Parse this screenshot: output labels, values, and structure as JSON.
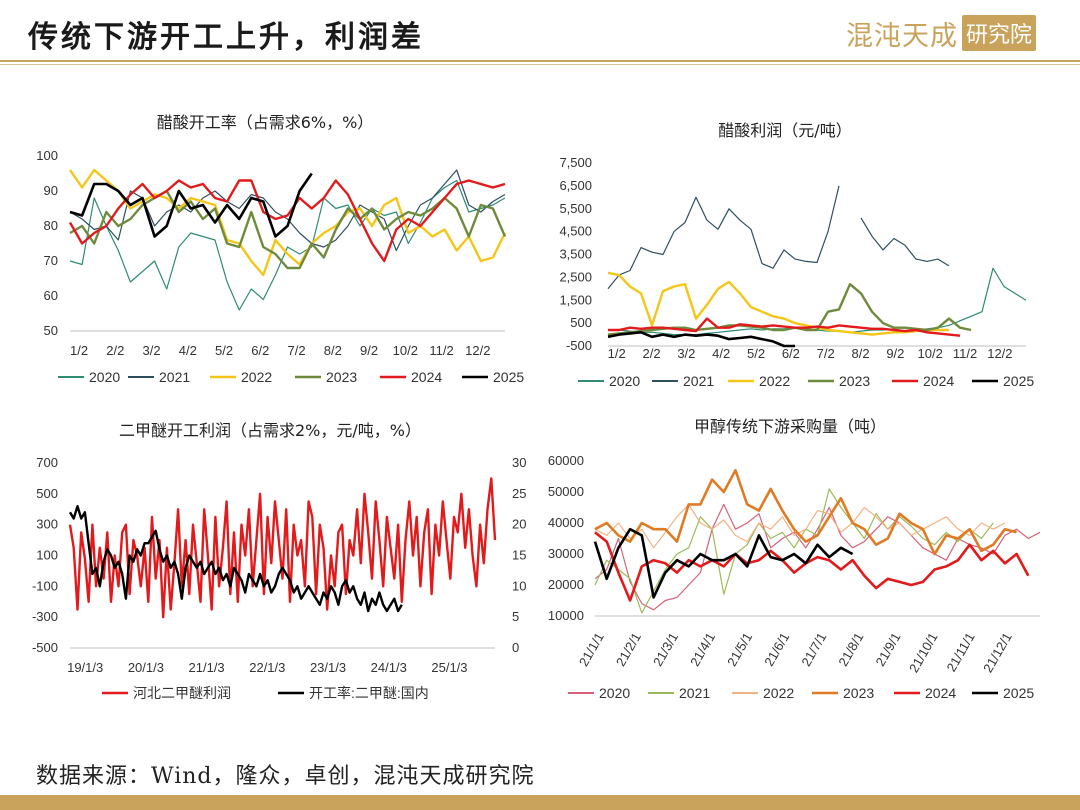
{
  "header": {
    "title": "传统下游开工上升，利润差"
  },
  "logo": {
    "text": "混沌天成",
    "box": "研究院"
  },
  "footer": {
    "source": "数据来源：Wind，隆众，卓创，混沌天成研究院"
  },
  "colors": {
    "gold": "#c9a35c"
  },
  "chart_data": [
    {
      "type": "line",
      "title": "醋酸开工率（占需求6%，%）",
      "ylim": [
        50,
        100
      ],
      "yticks": [
        "50",
        "60",
        "70",
        "80",
        "90",
        "100"
      ],
      "xlabels": [
        "1/2",
        "2/2",
        "3/2",
        "4/2",
        "5/2",
        "6/2",
        "7/2",
        "8/2",
        "9/2",
        "10/2",
        "11/2",
        "12/2"
      ],
      "grid": false,
      "legend": "bottom",
      "series": [
        {
          "name": "2020",
          "color": "#2e8b74",
          "width": 1.2,
          "values": [
            70,
            69,
            88,
            80,
            73,
            64,
            67,
            70,
            62,
            74,
            78,
            77,
            76,
            64,
            56,
            62,
            59,
            66,
            74,
            72,
            74,
            88,
            85,
            86,
            80,
            85,
            83,
            84,
            75,
            81,
            88,
            91,
            93,
            84,
            85,
            86,
            88
          ]
        },
        {
          "name": "2021",
          "color": "#2f4f5f",
          "width": 1.2,
          "values": [
            84,
            82,
            79,
            80,
            76,
            90,
            88,
            80,
            84,
            86,
            84,
            88,
            90,
            87,
            85,
            89,
            88,
            84,
            82,
            78,
            75,
            74,
            76,
            80,
            86,
            84,
            82,
            73,
            80,
            86,
            88,
            92,
            96,
            86,
            84,
            87,
            89
          ]
        },
        {
          "name": "2022",
          "color": "#f5c518",
          "width": 2.4,
          "values": [
            96,
            91,
            96,
            93,
            90,
            85,
            87,
            89,
            88,
            85,
            88,
            87,
            86,
            76,
            75,
            70,
            66,
            76,
            72,
            69,
            75,
            78,
            80,
            84,
            85,
            80,
            86,
            88,
            78,
            80,
            77,
            79,
            73,
            77,
            70,
            71,
            78
          ]
        },
        {
          "name": "2023",
          "color": "#6e8b3d",
          "width": 2.4,
          "values": [
            78,
            80,
            75,
            84,
            80,
            82,
            86,
            88,
            90,
            84,
            87,
            82,
            85,
            75,
            74,
            84,
            74,
            72,
            68,
            68,
            75,
            71,
            79,
            85,
            82,
            85,
            79,
            82,
            84,
            83,
            85,
            88,
            85,
            77,
            86,
            85,
            77
          ]
        },
        {
          "name": "2024",
          "color": "#e31a1c",
          "width": 2.4,
          "values": [
            81,
            75,
            78,
            80,
            85,
            89,
            92,
            88,
            90,
            93,
            91,
            92,
            88,
            87,
            93,
            93,
            84,
            82,
            83,
            88,
            85,
            88,
            93,
            89,
            82,
            75,
            70,
            79,
            82,
            80,
            84,
            88,
            92,
            93,
            92,
            91,
            92
          ]
        },
        {
          "name": "2025",
          "color": "#000000",
          "width": 2.6,
          "values": [
            84,
            83,
            92,
            92,
            90,
            86,
            88,
            77,
            80,
            90,
            85,
            86,
            81,
            86,
            82,
            88,
            87,
            77,
            80,
            90,
            95
          ]
        }
      ]
    },
    {
      "type": "line",
      "title": "醋酸利润（元/吨）",
      "ylim": [
        -500,
        7500
      ],
      "yticks": [
        "-500",
        "500",
        "1,500",
        "2,500",
        "3,500",
        "4,500",
        "5,500",
        "6,500",
        "7,500"
      ],
      "xlabels": [
        "1/2",
        "2/2",
        "3/2",
        "4/2",
        "5/2",
        "6/2",
        "7/2",
        "8/2",
        "9/2",
        "10/2",
        "11/2",
        "12/2"
      ],
      "grid": false,
      "legend": "bottom",
      "series": [
        {
          "name": "2020",
          "color": "#2e8b74",
          "width": 1.2,
          "values": [
            200,
            200,
            150,
            100,
            100,
            50,
            0,
            0,
            0,
            50,
            100,
            150,
            200,
            250,
            200,
            250,
            250,
            300,
            250,
            200,
            150,
            150,
            100,
            150,
            200,
            200,
            250,
            150,
            200,
            250,
            300,
            400,
            600,
            800,
            1000,
            2900,
            2100,
            1800,
            1500
          ]
        },
        {
          "name": "2021",
          "color": "#2f4f5f",
          "width": 1.2,
          "values": [
            2000,
            2600,
            2800,
            3800,
            3600,
            3500,
            4500,
            4900,
            6000,
            5000,
            4600,
            5500,
            5000,
            4600,
            3100,
            2900,
            3700,
            3300,
            3200,
            3150,
            4500,
            6500,
            null,
            5100,
            4300,
            3700,
            4200,
            3900,
            3300,
            3200,
            3300,
            3000
          ]
        },
        {
          "name": "2022",
          "color": "#f5c518",
          "width": 2.4,
          "values": [
            2700,
            2600,
            2100,
            1800,
            400,
            1900,
            2100,
            2200,
            700,
            1300,
            2000,
            2300,
            1800,
            1200,
            1000,
            800,
            700,
            500,
            400,
            300,
            200,
            150,
            100,
            50,
            0,
            50,
            100,
            100,
            150,
            200,
            200,
            200
          ]
        },
        {
          "name": "2023",
          "color": "#6e8b3d",
          "width": 2.4,
          "values": [
            0,
            50,
            100,
            150,
            200,
            250,
            300,
            300,
            200,
            250,
            300,
            400,
            400,
            350,
            300,
            200,
            200,
            300,
            200,
            200,
            1000,
            1100,
            2200,
            1800,
            1000,
            500,
            300,
            300,
            250,
            200,
            300,
            700,
            300,
            200
          ]
        },
        {
          "name": "2024",
          "color": "#e31a1c",
          "width": 2.4,
          "values": [
            200,
            200,
            300,
            250,
            300,
            300,
            250,
            200,
            150,
            700,
            300,
            300,
            450,
            400,
            350,
            400,
            350,
            300,
            300,
            350,
            300,
            400,
            350,
            300,
            250,
            250,
            200,
            150,
            200,
            100,
            50,
            0,
            -50
          ]
        },
        {
          "name": "2025",
          "color": "#000000",
          "width": 2.6,
          "values": [
            -100,
            0,
            50,
            100,
            -100,
            0,
            -100,
            0,
            -50,
            0,
            -50,
            -200,
            -150,
            -100,
            -200,
            -300,
            -500,
            -500
          ]
        }
      ]
    },
    {
      "type": "line",
      "title": "二甲醚开工利润（占需求2%，元/吨，%）",
      "ylim": [
        -500,
        700
      ],
      "yticks": [
        "-500",
        "-300",
        "-100",
        "100",
        "300",
        "500",
        "700"
      ],
      "y2lim": [
        0,
        30
      ],
      "y2ticks": [
        "0",
        "5",
        "10",
        "15",
        "20",
        "25",
        "30"
      ],
      "xlabels": [
        "19/1/3",
        "20/1/3",
        "21/1/3",
        "22/1/3",
        "23/1/3",
        "24/1/3",
        "25/1/3"
      ],
      "grid": false,
      "legend": "bottom",
      "series": [
        {
          "name": "河北二甲醚利润",
          "color": "#e31a1c",
          "width": 2.4,
          "axis": "left",
          "values": [
            300,
            150,
            -250,
            250,
            80,
            -200,
            300,
            -100,
            150,
            -50,
            250,
            -200,
            100,
            -100,
            250,
            300,
            -150,
            200,
            100,
            -100,
            150,
            -200,
            350,
            -50,
            200,
            -300,
            150,
            -250,
            50,
            400,
            -100,
            200,
            -150,
            300,
            50,
            -200,
            400,
            100,
            -250,
            350,
            -100,
            150,
            450,
            -150,
            250,
            -200,
            300,
            100,
            400,
            -100,
            200,
            500,
            -150,
            350,
            50,
            450,
            200,
            -50,
            400,
            -200,
            300,
            100,
            200,
            -100,
            450,
            350,
            -150,
            300,
            150,
            -250,
            100,
            -100,
            250,
            300,
            -150,
            200,
            100,
            400,
            50,
            500,
            250,
            -50,
            450,
            200,
            -100,
            350,
            150,
            -50,
            300,
            -200,
            200,
            450,
            100,
            350,
            -100,
            250,
            400,
            -150,
            300,
            100,
            450,
            200,
            -50,
            350,
            250,
            500,
            150,
            400,
            100,
            -100,
            300,
            50,
            400,
            600,
            200
          ]
        },
        {
          "name": "开工率:二甲醚:国内",
          "color": "#000000",
          "width": 2.4,
          "axis": "right",
          "values": [
            22,
            21,
            23,
            21,
            22,
            17,
            12,
            13,
            10,
            14,
            16,
            15,
            13,
            14,
            12,
            8,
            15,
            14,
            16,
            15,
            17,
            17,
            18,
            19,
            16,
            14,
            15,
            13,
            14,
            12,
            8,
            13,
            15,
            14,
            13,
            14,
            12,
            13,
            14,
            12,
            13,
            11,
            12,
            10,
            13,
            12,
            11,
            9,
            12,
            11,
            10,
            12,
            10,
            11,
            9,
            10,
            12,
            13,
            12,
            11,
            9,
            10,
            8,
            9,
            10,
            9,
            8,
            7,
            9,
            8,
            10,
            9,
            7,
            10,
            11,
            9,
            10,
            8,
            7,
            9,
            6,
            8,
            7,
            9,
            7,
            6,
            7,
            8,
            6,
            7
          ]
        }
      ]
    },
    {
      "type": "line",
      "title": "甲醇传统下游采购量（吨）",
      "ylim": [
        10000,
        60000
      ],
      "yticks": [
        "10000",
        "20000",
        "30000",
        "40000",
        "50000",
        "60000"
      ],
      "xlabels": [
        "21/1/1",
        "21/2/1",
        "21/3/1",
        "21/4/1",
        "21/5/1",
        "21/6/1",
        "21/7/1",
        "21/8/1",
        "21/9/1",
        "21/10/1",
        "21/11/1",
        "21/12/1"
      ],
      "grid": false,
      "legend": "bottom",
      "series": [
        {
          "name": "2020",
          "color": "#d6617a",
          "width": 1.2,
          "values": [
            22000,
            25000,
            35000,
            21000,
            14000,
            12000,
            15000,
            16000,
            20000,
            24000,
            38000,
            46000,
            38000,
            40000,
            43000,
            32000,
            35000,
            37000,
            32000,
            38000,
            45000,
            36000,
            32000,
            34000,
            38000,
            42000,
            40000,
            36000,
            32000,
            30000,
            28000,
            35000,
            33000,
            32000,
            30000,
            36000,
            38000,
            35000,
            37000
          ]
        },
        {
          "name": "2021",
          "color": "#9bbb59",
          "width": 1.2,
          "values": [
            20000,
            28000,
            25000,
            22000,
            11000,
            18000,
            25000,
            30000,
            32000,
            42000,
            38000,
            17000,
            30000,
            33000,
            40000,
            35000,
            37000,
            32000,
            38000,
            36000,
            51000,
            45000,
            40000,
            35000,
            43000,
            38000,
            42000,
            39000,
            35000,
            33000,
            37000,
            34000,
            38000,
            35000,
            40000
          ]
        },
        {
          "name": "2022",
          "color": "#f4b183",
          "width": 1.2,
          "values": [
            38000,
            36000,
            40000,
            35000,
            38000,
            32000,
            37000,
            42000,
            46000,
            40000,
            38000,
            41000,
            36000,
            34000,
            40000,
            38000,
            42000,
            36000,
            38000,
            44000,
            43000,
            37000,
            40000,
            45000,
            42000,
            38000,
            40000,
            36000,
            38000,
            40000,
            42000,
            38000,
            36000,
            40000,
            38000,
            40000
          ]
        },
        {
          "name": "2023",
          "color": "#e07b25",
          "width": 2.6,
          "values": [
            38000,
            40000,
            36000,
            34000,
            40000,
            38000,
            38000,
            34000,
            46000,
            46000,
            54000,
            50000,
            57000,
            46000,
            44000,
            51000,
            44000,
            38000,
            34000,
            36000,
            42000,
            48000,
            40000,
            38000,
            33000,
            35000,
            43000,
            40000,
            38000,
            30000,
            36000,
            35000,
            38000,
            31000,
            33000,
            38000,
            37000
          ]
        },
        {
          "name": "2024",
          "color": "#e31a1c",
          "width": 2.6,
          "values": [
            37000,
            34000,
            24000,
            15000,
            26000,
            28000,
            27000,
            24000,
            28000,
            26000,
            28000,
            26000,
            30000,
            27000,
            28000,
            31000,
            28000,
            24000,
            27000,
            29000,
            28000,
            25000,
            28000,
            23000,
            19000,
            22000,
            21000,
            20000,
            21000,
            25000,
            26000,
            28000,
            33000,
            28000,
            31000,
            27000,
            30000,
            23000
          ]
        },
        {
          "name": "2025",
          "color": "#000000",
          "width": 2.6,
          "values": [
            34000,
            22000,
            32000,
            38000,
            36000,
            16000,
            24000,
            28000,
            26000,
            30000,
            28000,
            28000,
            30000,
            26000,
            36000,
            29000,
            28000,
            30000,
            27000,
            33000,
            29000,
            32000,
            30000
          ]
        }
      ]
    }
  ]
}
